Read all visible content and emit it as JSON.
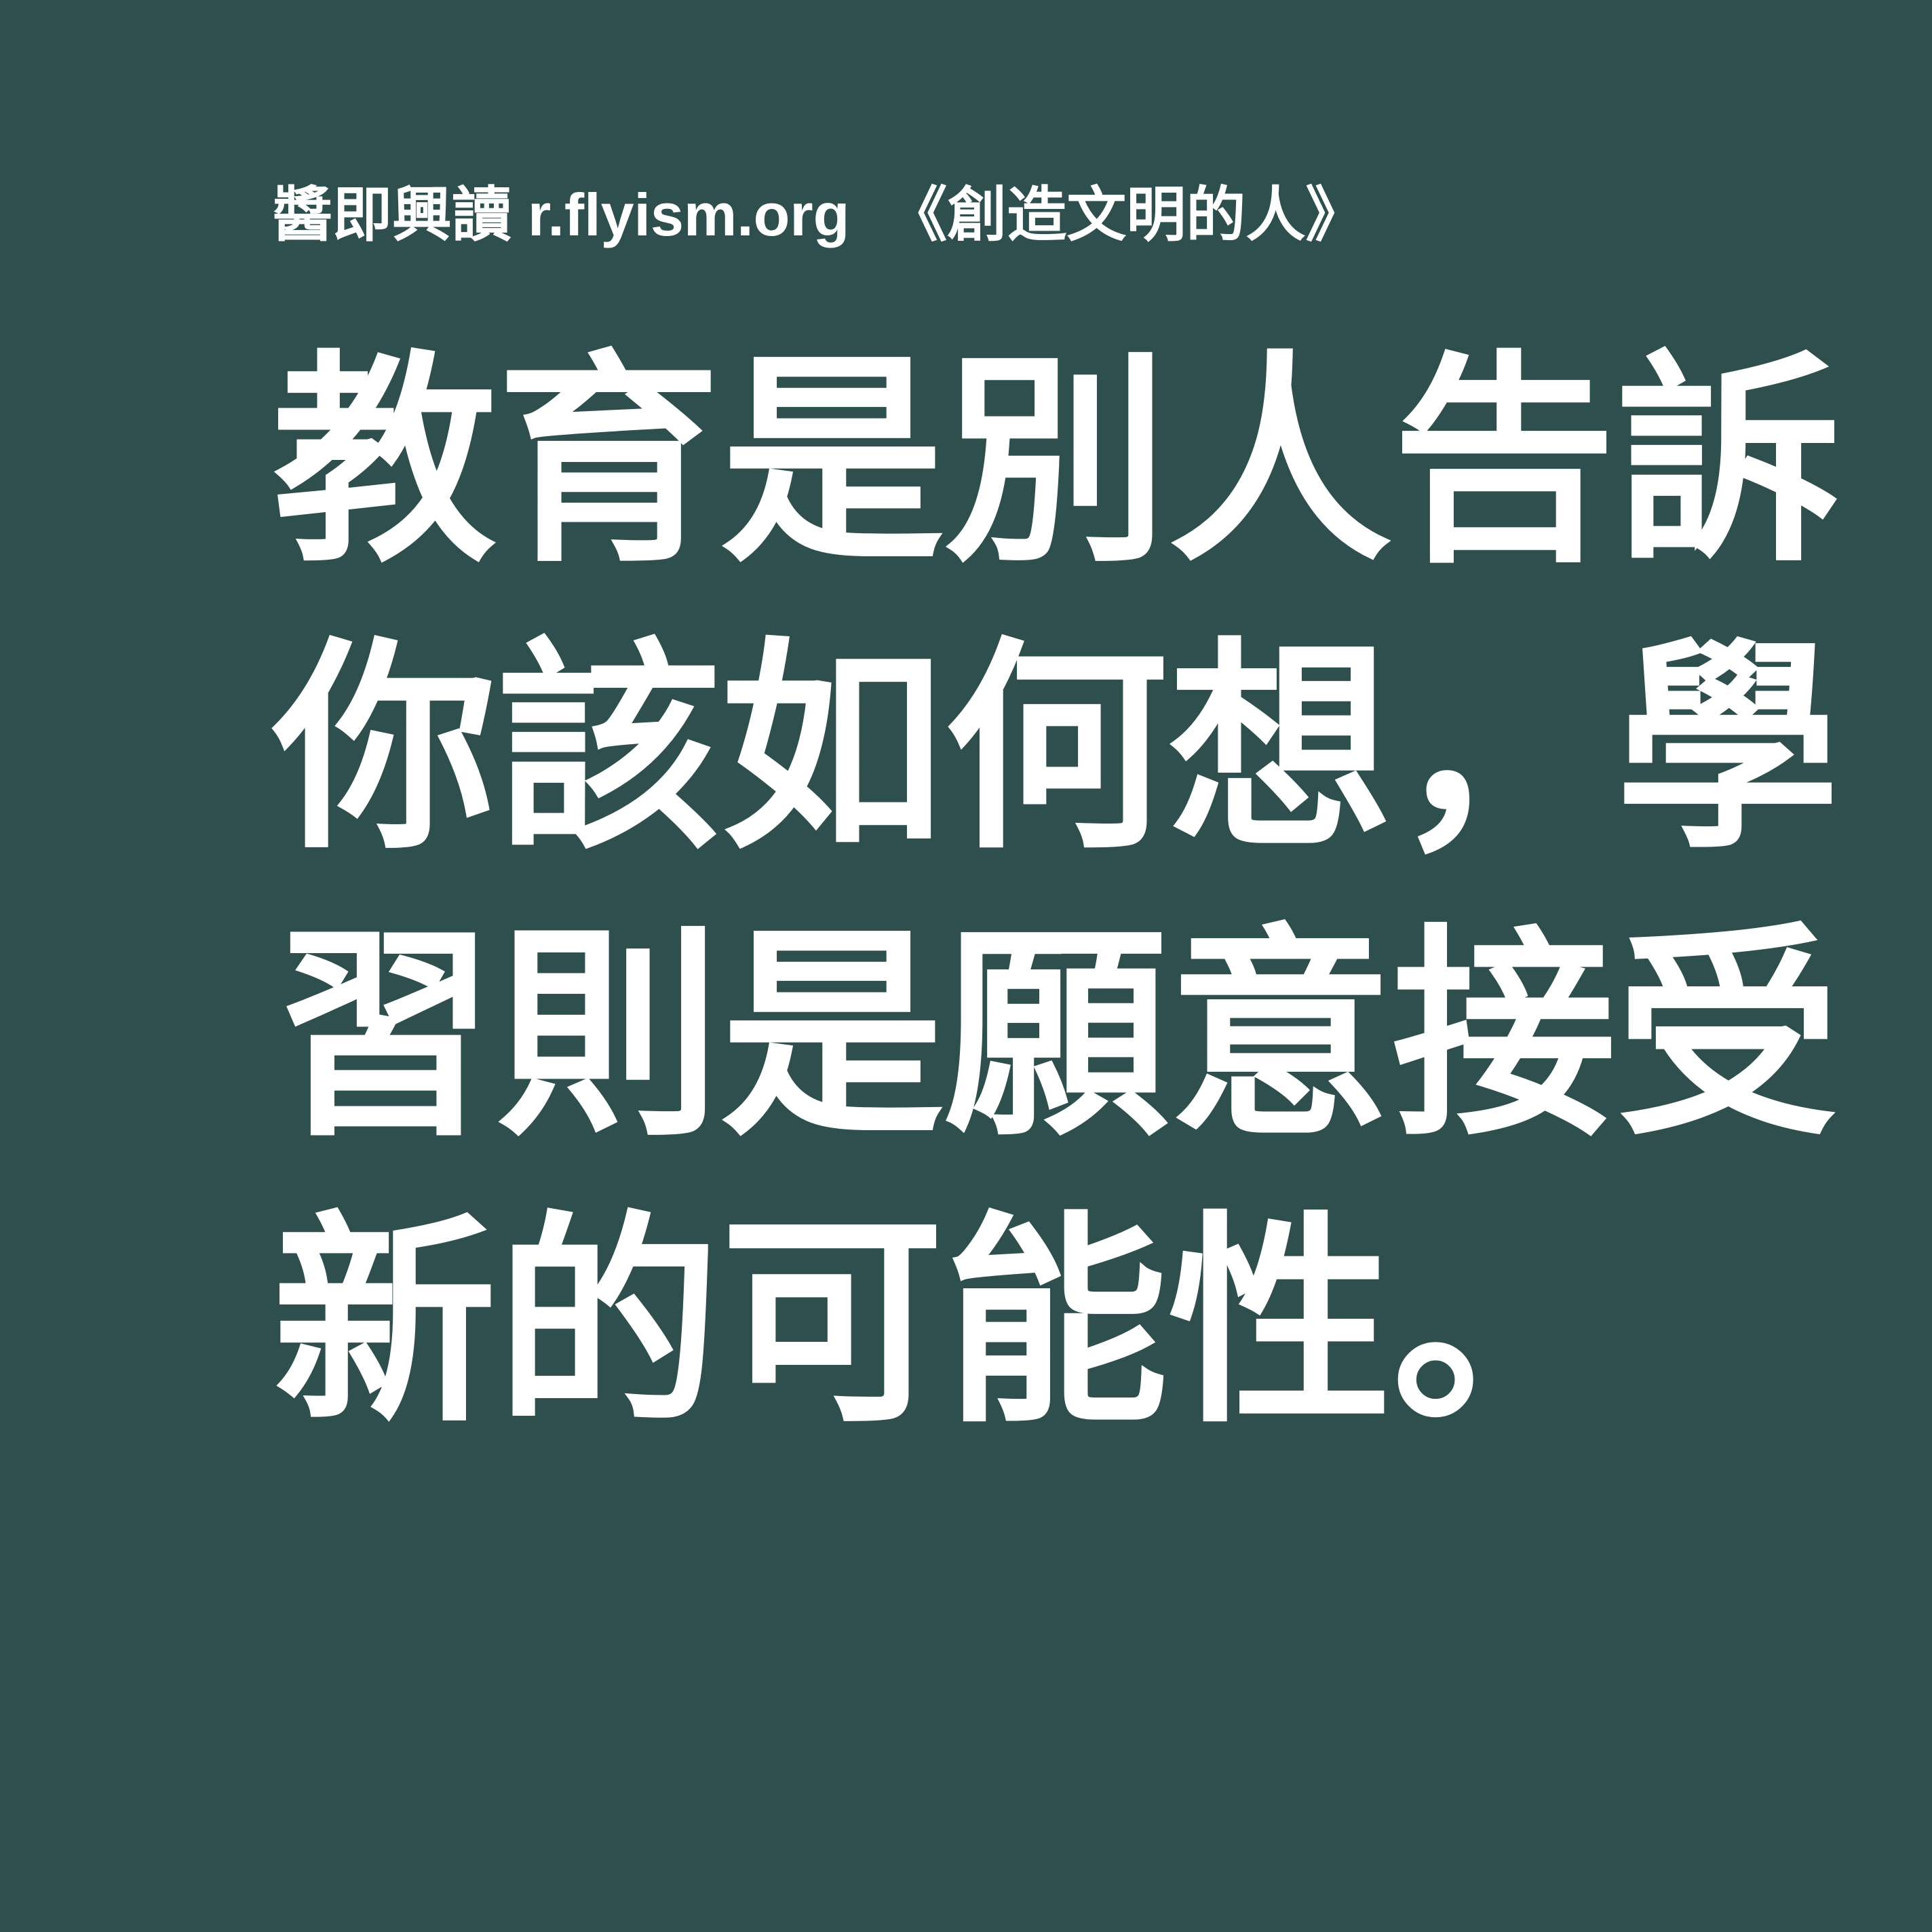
{
  "colors": {
    "background": "#2f4f4f",
    "text": "#ffffff"
  },
  "header": {
    "brand": "醬即興讀",
    "site": "r.flyism.org",
    "book": "《創造文明的人》"
  },
  "quote": {
    "lines": [
      "教育是別人告訴",
      "你該如何想，學",
      "習則是願意接受",
      "新的可能性。"
    ]
  }
}
